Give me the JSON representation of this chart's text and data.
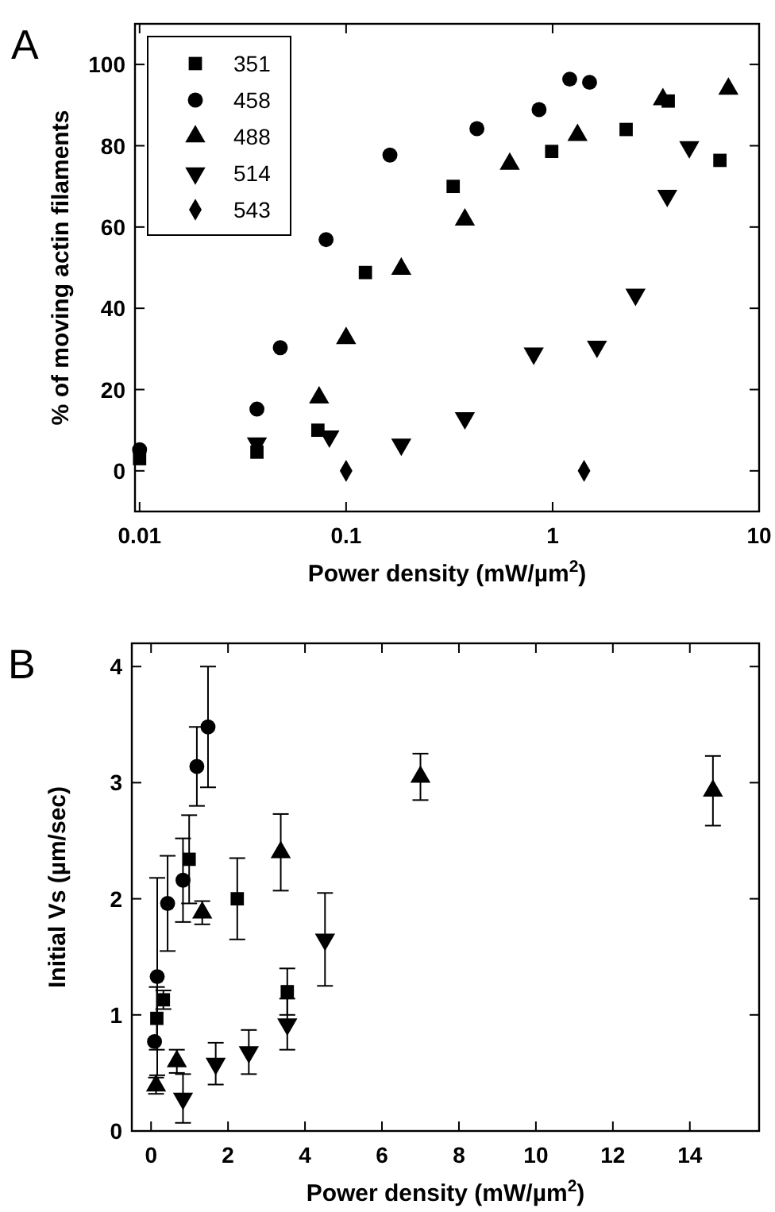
{
  "chart_data": [
    {
      "type": "scatter",
      "title": "A",
      "xlabel": "Power density (mW/µm$^{2}$)",
      "ylabel": "% of moving actin filaments",
      "log": "x",
      "xlim": [
        0.0095,
        10
      ],
      "xticks": [
        0.01,
        0.1,
        1,
        10
      ],
      "ylim": [
        -10,
        110
      ],
      "yticks": [
        0,
        20,
        40,
        60,
        80,
        100
      ],
      "legend": "top left",
      "grid": false,
      "series": [
        {
          "name": "351",
          "color": "#000000",
          "marker": "square",
          "x": [
            0.01,
            0.037,
            0.073,
            0.124,
            0.33,
            0.99,
            2.27,
            3.63,
            6.46
          ],
          "values": [
            3,
            4.6,
            10,
            48.8,
            70,
            78.6,
            84,
            91,
            76.4
          ]
        },
        {
          "name": "458",
          "color": "#000000",
          "marker": "circle",
          "x": [
            0.01,
            0.037,
            0.048,
            0.08,
            0.163,
            0.43,
            0.86,
            1.21,
            1.51
          ],
          "values": [
            5.2,
            15.2,
            30.3,
            56.9,
            77.7,
            84.2,
            88.9,
            96.4,
            95.6
          ]
        },
        {
          "name": "488",
          "color": "#000000",
          "marker": "triangle",
          "x": [
            0.074,
            0.1,
            0.185,
            0.376,
            0.62,
            1.32,
            3.42,
            7.1
          ],
          "values": [
            18,
            32.6,
            49.7,
            61.8,
            75.5,
            82.6,
            91.4,
            94
          ]
        },
        {
          "name": "514",
          "color": "#000000",
          "marker": "triangle-down",
          "x": [
            0.037,
            0.083,
            0.185,
            0.376,
            0.81,
            1.64,
            2.52,
            3.59,
            4.59
          ],
          "values": [
            6.8,
            8.5,
            6.5,
            13,
            28.9,
            30.6,
            43.4,
            67.7,
            79.7
          ]
        },
        {
          "name": "543",
          "color": "#000000",
          "marker": "diamond",
          "x": [
            0.1,
            1.42
          ],
          "values": [
            0,
            0
          ]
        }
      ]
    },
    {
      "type": "scatter",
      "title": "B",
      "xlabel": "Power density (mW/µm$^{2}$)",
      "ylabel": "Initial Vs (µm/sec)",
      "xlim": [
        -0.5,
        15.8
      ],
      "xticks": [
        0,
        2,
        4,
        6,
        8,
        10,
        12,
        14
      ],
      "ylim": [
        0,
        4.2
      ],
      "yticks": [
        0,
        1,
        2,
        3,
        4
      ],
      "legend": false,
      "grid": false,
      "series": [
        {
          "color": "#000000",
          "marker": "square",
          "x": [
            0.15,
            0.32,
            0.99,
            2.24,
            3.54
          ],
          "values": [
            0.97,
            1.13,
            2.34,
            2.0,
            1.2
          ],
          "errors": [
            0.27,
            0.08,
            0.38,
            0.35,
            0.2
          ]
        },
        {
          "color": "#000000",
          "marker": "circle",
          "x": [
            0.09,
            0.16,
            0.43,
            0.83,
            1.19,
            1.48
          ],
          "values": [
            0.77,
            1.33,
            1.96,
            2.16,
            3.14,
            3.48
          ],
          "errors": [
            null,
            0.85,
            0.41,
            0.36,
            0.34,
            0.52
          ]
        },
        {
          "color": "#000000",
          "marker": "triangle",
          "x": [
            0.13,
            0.67,
            1.33,
            3.37,
            7.0,
            14.6
          ],
          "values": [
            0.39,
            0.6,
            1.88,
            2.4,
            3.05,
            2.93
          ],
          "errors": [
            0.07,
            0.1,
            0.1,
            0.33,
            0.2,
            0.3
          ]
        },
        {
          "color": "#000000",
          "marker": "triangle-down",
          "x": [
            0.83,
            1.68,
            2.54,
            3.54,
            4.52
          ],
          "values": [
            0.28,
            0.58,
            0.68,
            0.92,
            1.65
          ],
          "errors": [
            0.21,
            0.18,
            0.19,
            0.22,
            0.4
          ]
        }
      ]
    }
  ]
}
